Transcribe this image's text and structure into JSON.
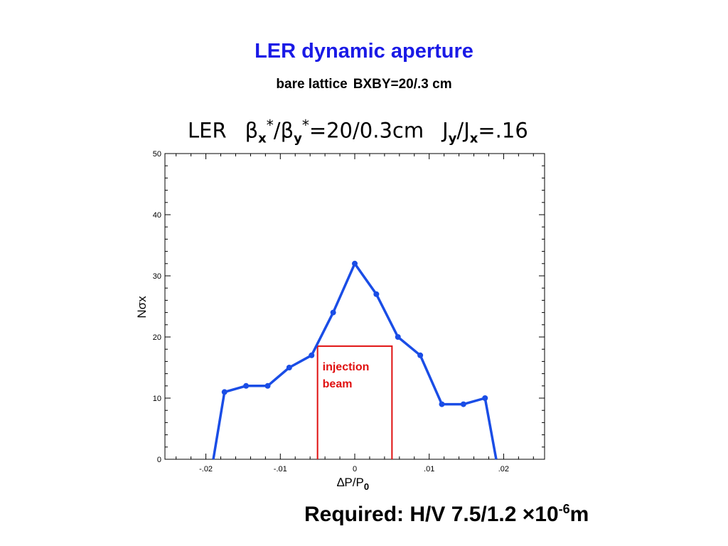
{
  "page": {
    "title": "LER dynamic aperture",
    "subtitle_left": "bare lattice",
    "subtitle_right": "BXBY=20/.3 cm",
    "footer": {
      "main": "Required: H/V  7.5/1.2 ×10",
      "exponent": "-6",
      "unit": "m"
    }
  },
  "chart_data": {
    "type": "line",
    "title": {
      "prefix": "LER",
      "beta": "β",
      "sub_x": "x",
      "sub_y": "y",
      "star": "*",
      "slash": "/",
      "value": "=20/0.3cm",
      "j": "J",
      "ratio_value": "=.16"
    },
    "xlabel": {
      "main": "∆P/P",
      "sub": "0"
    },
    "ylabel": "Nσx",
    "xlim": [
      -0.0255,
      0.0255
    ],
    "ylim": [
      0,
      50
    ],
    "xticks": [
      {
        "value": -0.02,
        "label": "-.02"
      },
      {
        "value": -0.01,
        "label": "-.01"
      },
      {
        "value": 0,
        "label": "0"
      },
      {
        "value": 0.01,
        "label": ".01"
      },
      {
        "value": 0.02,
        "label": ".02"
      }
    ],
    "yticks": [
      {
        "value": 0,
        "label": "0"
      },
      {
        "value": 10,
        "label": "10"
      },
      {
        "value": 20,
        "label": "20"
      },
      {
        "value": 30,
        "label": "30"
      },
      {
        "value": 40,
        "label": "40"
      },
      {
        "value": 50,
        "label": "50"
      }
    ],
    "series_color": "#1a4de6",
    "series": [
      {
        "x": [
          -0.019,
          -0.0175,
          -0.0146,
          -0.0117,
          -0.0088,
          -0.0058,
          -0.0029,
          0,
          0.0029,
          0.0058,
          0.0088,
          0.0117,
          0.0146,
          0.0175,
          0.019
        ],
        "y": [
          0,
          11,
          12,
          12,
          15,
          17,
          24,
          32,
          27,
          20,
          17,
          9,
          9,
          10,
          0
        ],
        "markers": [
          false,
          true,
          true,
          true,
          true,
          true,
          true,
          true,
          true,
          true,
          true,
          true,
          true,
          true,
          false
        ]
      }
    ],
    "annotation": {
      "lines": [
        "injection",
        "beam"
      ],
      "color": "#e01010",
      "x_range": [
        -0.005,
        0.005
      ],
      "y_top": 18.5
    }
  }
}
